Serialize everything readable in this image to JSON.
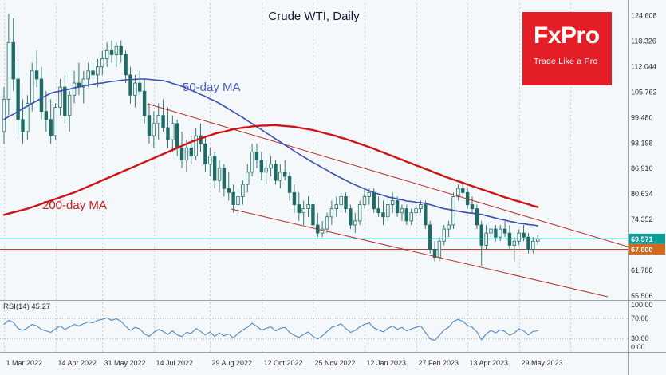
{
  "header": {
    "title": "Crude WTI, Daily"
  },
  "logo": {
    "brand": "FxPro",
    "tagline": "Trade Like a Pro",
    "bg_color": "#e41e26"
  },
  "overlays": {
    "ma50_label": "50-day MA",
    "ma200_label": "200-day MA",
    "rsi_label": "RSI(14) 45.27"
  },
  "chart_data": {
    "type": "candlestick",
    "title": "Crude WTI, Daily",
    "ylabel": "Price (USD)",
    "ylim": [
      54.5,
      126.5
    ],
    "grid": "vertical-dashed",
    "legend_position": "none",
    "price_ticks": [
      "124.608",
      "118.326",
      "112.044",
      "105.762",
      "99.480",
      "93.198",
      "86.916",
      "80.634",
      "74.352",
      "61.788",
      "55.506"
    ],
    "time_labels": [
      {
        "text": "1 Mar 2022",
        "i": 0
      },
      {
        "text": "14 Apr 2022",
        "i": 11
      },
      {
        "text": "31 May 2022",
        "i": 21
      },
      {
        "text": "14 Jul 2022",
        "i": 32
      },
      {
        "text": "29 Aug 2022",
        "i": 44
      },
      {
        "text": "12 Oct 2022",
        "i": 55
      },
      {
        "text": "25 Nov 2022",
        "i": 66
      },
      {
        "text": "12 Jan 2023",
        "i": 77
      },
      {
        "text": "27 Feb 2023",
        "i": 88
      },
      {
        "text": "13 Apr 2023",
        "i": 99
      },
      {
        "text": "29 May 2023",
        "i": 110
      },
      {
        "text": "",
        "i": 121
      }
    ],
    "open": [
      96,
      104,
      118,
      109,
      99,
      96,
      103,
      111,
      109,
      101,
      99,
      95,
      102,
      107,
      100,
      105,
      108,
      107,
      109,
      111,
      110,
      112,
      114,
      116,
      115,
      117,
      115,
      110,
      105,
      108,
      106,
      100,
      95,
      98,
      100,
      97,
      94,
      98,
      92,
      89,
      92,
      90,
      95,
      93,
      88,
      90,
      84,
      87,
      82,
      81,
      78,
      80,
      83,
      86,
      91,
      89,
      86,
      87,
      88,
      84,
      86,
      85,
      81,
      78,
      76,
      77,
      78,
      73,
      71,
      72,
      75,
      77,
      78,
      80,
      77,
      73,
      74,
      78,
      80,
      81,
      77,
      76,
      75,
      78,
      79,
      76,
      77,
      74,
      76,
      77,
      78,
      73,
      67,
      65,
      69,
      72,
      73,
      80,
      82,
      81,
      78,
      77,
      73,
      68,
      71,
      72,
      70,
      72,
      71,
      68,
      69,
      71,
      70,
      67,
      69
    ],
    "high": [
      107,
      125,
      124,
      114,
      104,
      105,
      113,
      116,
      112,
      106,
      104,
      103,
      109,
      110,
      106,
      111,
      113,
      111,
      113,
      114,
      114,
      116,
      118,
      118.5,
      118,
      118.5,
      116,
      112,
      110,
      111,
      109,
      103,
      101,
      103,
      104,
      102,
      100,
      99,
      96,
      94,
      95,
      97,
      98,
      95,
      92,
      91,
      89,
      88,
      86,
      83,
      82,
      84,
      88,
      93,
      93,
      91,
      89,
      90,
      89,
      88,
      89,
      86,
      83,
      81,
      79,
      80,
      79,
      76,
      74,
      76,
      79,
      80,
      81,
      81,
      78,
      76,
      79,
      82,
      82,
      82,
      80,
      79,
      80,
      81,
      80,
      78,
      78,
      77,
      78,
      79,
      79,
      74,
      69,
      70,
      73,
      74,
      81,
      83,
      83,
      82,
      80,
      78,
      74,
      73,
      74,
      73,
      73,
      74,
      73,
      70,
      72,
      73,
      71,
      70,
      70.5
    ],
    "low": [
      93,
      100,
      106,
      95,
      93,
      94,
      101,
      107,
      99,
      96,
      93,
      94,
      100,
      98,
      96,
      103,
      105,
      103,
      107,
      109,
      107,
      110,
      112,
      113,
      112,
      113,
      108,
      103,
      102,
      105,
      98,
      93,
      92,
      94,
      96,
      92,
      91,
      90,
      87,
      86,
      88,
      89,
      91,
      86,
      85,
      82,
      81,
      80,
      79,
      76,
      75,
      78,
      81,
      85,
      87,
      84,
      83,
      85,
      83,
      82,
      84,
      79,
      76,
      74,
      73,
      75,
      72,
      70,
      70,
      71,
      73,
      75,
      76,
      76,
      72,
      71,
      73,
      77,
      78,
      76,
      75,
      73,
      74,
      76,
      75,
      74,
      73,
      73,
      75,
      76,
      72,
      66,
      64,
      64,
      68,
      70,
      72,
      79,
      80,
      77,
      76,
      72,
      63,
      67,
      70,
      69,
      69,
      70,
      67,
      64,
      68,
      69,
      66,
      66,
      68
    ],
    "close": [
      104,
      118,
      109,
      99,
      96,
      103,
      111,
      109,
      101,
      99,
      95,
      102,
      107,
      100,
      105,
      108,
      107,
      109,
      111,
      110,
      112,
      114,
      116,
      115,
      117,
      115,
      110,
      105,
      108,
      106,
      100,
      95,
      98,
      100,
      97,
      94,
      98,
      92,
      89,
      92,
      90,
      95,
      93,
      88,
      90,
      84,
      87,
      82,
      81,
      78,
      80,
      83,
      86,
      91,
      89,
      86,
      87,
      88,
      84,
      86,
      85,
      81,
      78,
      76,
      77,
      78,
      73,
      71,
      72,
      75,
      77,
      78,
      80,
      77,
      73,
      74,
      78,
      80,
      81,
      77,
      76,
      75,
      78,
      79,
      76,
      77,
      74,
      76,
      77,
      78,
      73,
      67,
      65,
      69,
      72,
      73,
      80,
      82,
      81,
      78,
      77,
      73,
      68,
      71,
      72,
      70,
      72,
      71,
      68,
      69,
      71,
      70,
      67,
      69,
      69.57
    ],
    "ma50": [
      99,
      99.7,
      100.3,
      101,
      101.7,
      102.3,
      103,
      103.6,
      104.3,
      104.9,
      105.5,
      105.8,
      106,
      106.3,
      106.5,
      106.8,
      107,
      107.3,
      107.5,
      107.7,
      107.9,
      108,
      108.2,
      108.4,
      108.5,
      108.7,
      108.8,
      108.9,
      108.9,
      109,
      109,
      108.9,
      108.8,
      108.7,
      108.6,
      108.3,
      107.9,
      107.6,
      107.2,
      106.7,
      106.2,
      105.7,
      105.2,
      104.7,
      104.1,
      103.6,
      103,
      102.3,
      101.6,
      100.9,
      100.2,
      99.5,
      98.7,
      98,
      97.2,
      96.5,
      95.7,
      95,
      94.2,
      93.5,
      92.7,
      92,
      91.2,
      90.5,
      89.8,
      89.1,
      88.4,
      87.8,
      87.1,
      86.5,
      85.8,
      85.2,
      84.6,
      84,
      83.4,
      82.9,
      82.4,
      81.9,
      81.4,
      81,
      80.6,
      80.3,
      79.9,
      79.7,
      79.4,
      79.2,
      78.9,
      78.8,
      78.6,
      78.5,
      78.3,
      78,
      77.7,
      77.3,
      77,
      76.8,
      76.6,
      76.4,
      76.2,
      76,
      75.9,
      75.7,
      75.6,
      75.3,
      75,
      74.7,
      74.4,
      74.2,
      73.9,
      73.7,
      73.4,
      73.3,
      73.1,
      73,
      72.8
    ],
    "ma200": [
      75.5,
      75.8,
      76.1,
      76.4,
      76.7,
      77,
      77.4,
      77.8,
      78.2,
      78.6,
      79,
      79.4,
      79.8,
      80.2,
      80.6,
      81,
      81.5,
      82,
      82.5,
      83,
      83.5,
      84,
      84.5,
      85,
      85.5,
      86,
      86.5,
      87,
      87.5,
      88,
      88.5,
      89,
      89.5,
      90,
      90.5,
      91,
      91.5,
      92,
      92.5,
      93,
      93.5,
      93.9,
      94.3,
      94.7,
      95.1,
      95.5,
      95.8,
      96,
      96.3,
      96.6,
      96.8,
      97,
      97.1,
      97.3,
      97.4,
      97.5,
      97.5,
      97.6,
      97.6,
      97.5,
      97.4,
      97.3,
      97.2,
      97,
      96.8,
      96.6,
      96.4,
      96.1,
      95.8,
      95.5,
      95.2,
      94.9,
      94.5,
      94.2,
      93.8,
      93.4,
      93,
      92.6,
      92.2,
      91.8,
      91.3,
      90.9,
      90.4,
      90,
      89.5,
      89.1,
      88.6,
      88.2,
      87.7,
      87.3,
      86.8,
      86.4,
      85.9,
      85.5,
      85,
      84.6,
      84.2,
      83.8,
      83.4,
      83,
      82.6,
      82.2,
      81.8,
      81.4,
      81,
      80.6,
      80.2,
      79.8,
      79.5,
      79.1,
      78.8,
      78.4,
      78.1,
      77.7,
      77.4
    ],
    "rsi": {
      "name": "RSI",
      "period": 14,
      "last_value": 45.27,
      "ylim": [
        0,
        100
      ],
      "ticks": [
        "100.00",
        "70.00",
        "30.00",
        "0.00"
      ],
      "levels": [
        70,
        30
      ],
      "values": [
        58,
        66,
        62,
        50,
        46,
        51,
        58,
        55,
        48,
        45,
        42,
        49,
        55,
        48,
        53,
        58,
        55,
        59,
        63,
        61,
        66,
        68,
        71,
        66,
        69,
        64,
        54,
        46,
        52,
        49,
        39,
        34,
        42,
        48,
        44,
        38,
        45,
        37,
        34,
        42,
        40,
        50,
        44,
        37,
        43,
        34,
        41,
        35,
        39,
        31,
        40,
        47,
        52,
        60,
        54,
        47,
        50,
        53,
        45,
        50,
        52,
        42,
        36,
        32,
        38,
        43,
        34,
        29,
        35,
        44,
        52,
        55,
        59,
        50,
        42,
        46,
        53,
        58,
        61,
        51,
        47,
        43,
        50,
        55,
        48,
        52,
        45,
        49,
        52,
        55,
        42,
        29,
        26,
        36,
        47,
        52,
        64,
        68,
        64,
        56,
        52,
        43,
        27,
        39,
        46,
        41,
        47,
        44,
        36,
        41,
        49,
        45,
        37,
        44,
        45.27
      ]
    },
    "levels": [
      {
        "price": 69.571,
        "tag": "69.571",
        "line_color": "#0c9e96",
        "tag_bg": "#0c9e96",
        "width": 1.3
      },
      {
        "price": 67.0,
        "tag": "67.000",
        "line_color": "#c0392b",
        "tag_bg": "#d2691e",
        "width": 1
      }
    ],
    "trendlines": [
      {
        "i1": 30.66,
        "p1": 102.89,
        "i2": 133.22,
        "p2": 67.65,
        "color": "#b0302c"
      },
      {
        "i1": 48.55,
        "p1": 76.92,
        "i2": 128.96,
        "p2": 55.28,
        "color": "#b0302c"
      }
    ],
    "colors": {
      "candle": "#1e6b66",
      "candle_up": "#eef5f5",
      "ma50": "#3a4db0",
      "ma200": "#cc1417",
      "rsi_line": "#4f87c7",
      "grid": "#c9d0da",
      "axis_text": "#2b2b2b",
      "frame": "#9aa3ad",
      "background": "#f5f8fb"
    }
  }
}
